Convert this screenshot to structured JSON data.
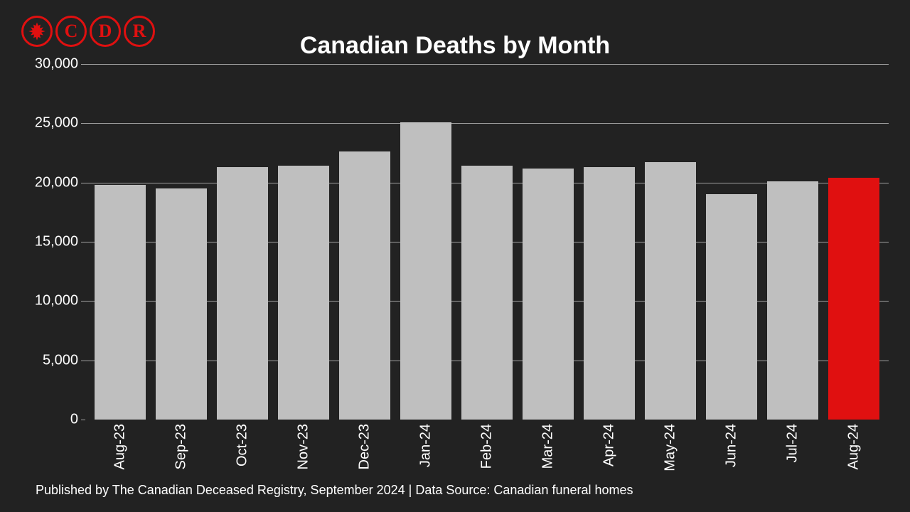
{
  "logo": {
    "letters": [
      "C",
      "D",
      "R"
    ],
    "color": "#e01010"
  },
  "chart": {
    "type": "bar",
    "title": "Canadian Deaths by Month",
    "title_fontsize": 34,
    "background_color": "#222222",
    "text_color": "#ffffff",
    "grid_color": "#a0a0a0",
    "ylim": [
      0,
      30000
    ],
    "yticks": [
      0,
      5000,
      10000,
      15000,
      20000,
      25000,
      30000
    ],
    "ytick_labels": [
      "0",
      "5,000",
      "10,000",
      "15,000",
      "20,000",
      "25,000",
      "30,000"
    ],
    "tick_fontsize": 20,
    "categories": [
      "Aug-23",
      "Sep-23",
      "Oct-23",
      "Nov-23",
      "Dec-23",
      "Jan-24",
      "Feb-24",
      "Mar-24",
      "Apr-24",
      "May-24",
      "Jun-24",
      "Jul-24",
      "Aug-24"
    ],
    "values": [
      19800,
      19500,
      21300,
      21400,
      22600,
      25100,
      21400,
      21200,
      21300,
      21700,
      19000,
      20100,
      20400
    ],
    "bar_colors": [
      "#bfbfbf",
      "#bfbfbf",
      "#bfbfbf",
      "#bfbfbf",
      "#bfbfbf",
      "#bfbfbf",
      "#bfbfbf",
      "#bfbfbf",
      "#bfbfbf",
      "#bfbfbf",
      "#bfbfbf",
      "#bfbfbf",
      "#e01010"
    ],
    "bar_gap_ratio": 0.18
  },
  "footer": "Published by The Canadian Deceased Registry, September 2024 | Data Source: Canadian funeral homes"
}
